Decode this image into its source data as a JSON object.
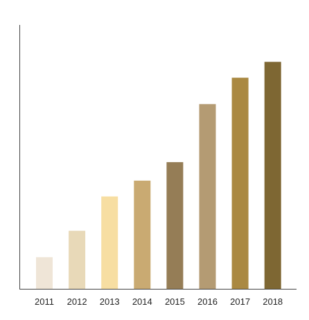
{
  "chart_data": {
    "type": "bar",
    "title": "",
    "xlabel": "",
    "ylabel": "",
    "categories": [
      "2011",
      "2012",
      "2013",
      "2014",
      "2015",
      "2016",
      "2017",
      "2018"
    ],
    "values": [
      12,
      22,
      35,
      41,
      48,
      70,
      80,
      86
    ],
    "ylim": [
      0,
      100
    ],
    "grid": false,
    "legend": "none",
    "bar_colors": [
      "#efe5d7",
      "#e8d9b8",
      "#f7dea2",
      "#c9aa72",
      "#957d56",
      "#b49b73",
      "#aa8942",
      "#7e6733"
    ]
  }
}
